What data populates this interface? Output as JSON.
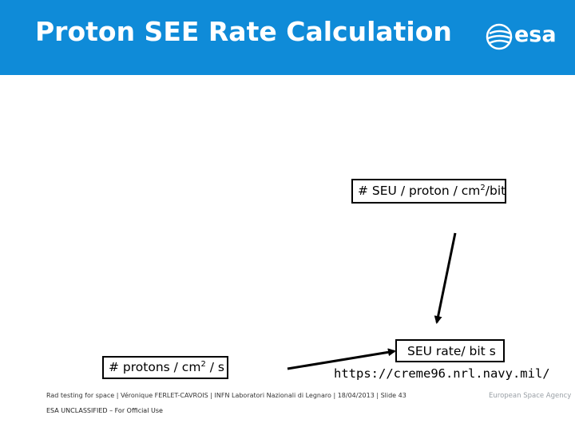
{
  "slide": {
    "title": "Proton SEE Rate Calculation",
    "logo_text": "esa",
    "labels": {
      "cross_section_prefix": "# SEU / proton / cm",
      "cross_section_exp": "2",
      "cross_section_suffix": "/bit",
      "flux_prefix": "# protons / cm",
      "flux_exp": "2",
      "flux_suffix": " / s",
      "rate": "SEU rate/ bit s",
      "url": "https://creme96.nrl.navy.mil/"
    },
    "footer": {
      "text": "Rad testing for space | Véronique FERLET-CAVROIS | INFN Laboratori Nazionali di Legnaro | 18/04/2013 | Slide  43",
      "classification": "ESA UNCLASSIFIED – For Official Use",
      "agency": "European Space Agency"
    },
    "colors": {
      "header_bg": "#0f8bd8",
      "title_text": "#ffffff"
    }
  }
}
